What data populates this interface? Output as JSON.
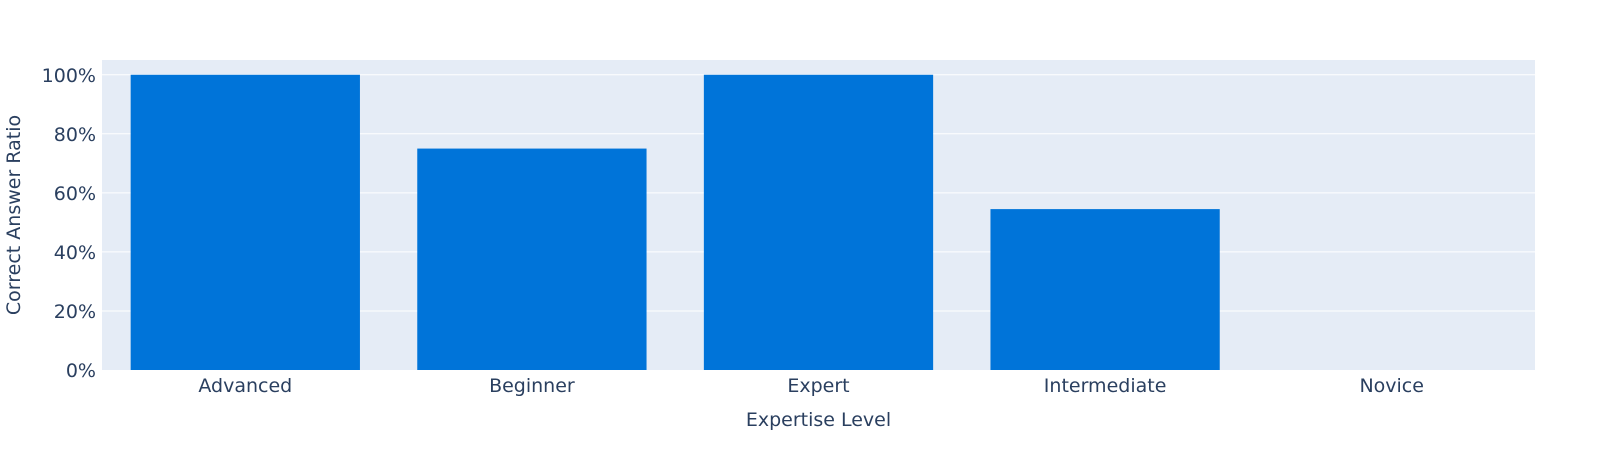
{
  "chart_data": {
    "type": "bar",
    "title": "",
    "xlabel": "Expertise Level",
    "ylabel": "Correct Answer Ratio",
    "categories": [
      "Advanced",
      "Beginner",
      "Expert",
      "Intermediate",
      "Novice"
    ],
    "values": [
      1.0,
      0.75,
      1.0,
      0.545,
      0.0
    ],
    "ylim": [
      0,
      1.05
    ],
    "yticks": [
      0,
      0.2,
      0.4,
      0.6,
      0.8,
      1.0
    ],
    "ytick_labels": [
      "0%",
      "20%",
      "40%",
      "60%",
      "80%",
      "100%"
    ],
    "grid": true,
    "legend": false,
    "bar_color": "#0074d9",
    "plot_background": "#e5ecf6",
    "gridline_color": "#ffffff",
    "text_color": "#2a3f5f"
  }
}
